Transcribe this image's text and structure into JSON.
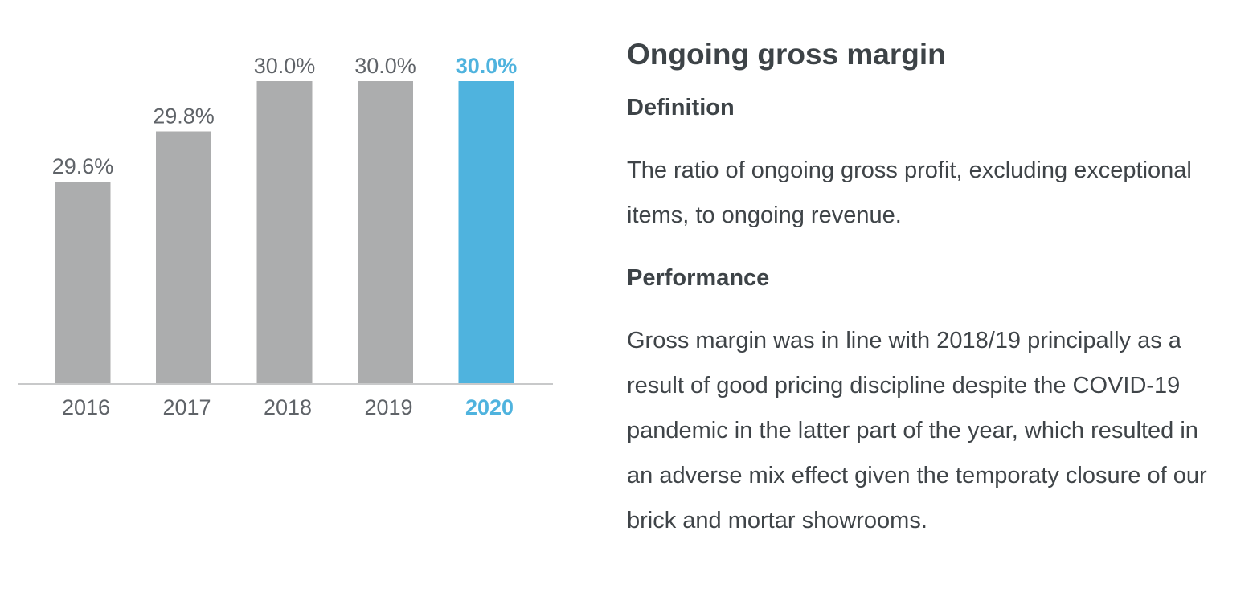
{
  "chart_data": {
    "type": "bar",
    "categories": [
      "2016",
      "2017",
      "2018",
      "2019",
      "2020"
    ],
    "values": [
      29.6,
      29.8,
      30.0,
      30.0,
      30.0
    ],
    "value_labels": [
      "29.6%",
      "29.8%",
      "30.0%",
      "30.0%",
      "30.0%"
    ],
    "highlight_index": 4,
    "colors": {
      "default": "#acadae",
      "highlight": "#4fb3de",
      "label": "#5f6368",
      "axis": "#c8c9ca"
    },
    "title": "",
    "xlabel": "",
    "ylabel": "",
    "grid": false
  },
  "panel": {
    "title": "Ongoing gross margin",
    "definition_heading": "Definition",
    "definition_text": "The ratio of ongoing gross profit, excluding exceptional items, to ongoing revenue.",
    "performance_heading": "Performance",
    "performance_text": "Gross margin was in line with 2018/19 principally as a result of good pricing discipline despite the COVID-19 pandemic in the latter part of the year, which resulted in an adverse mix effect given the temporaty closure of our brick and mortar showrooms."
  }
}
